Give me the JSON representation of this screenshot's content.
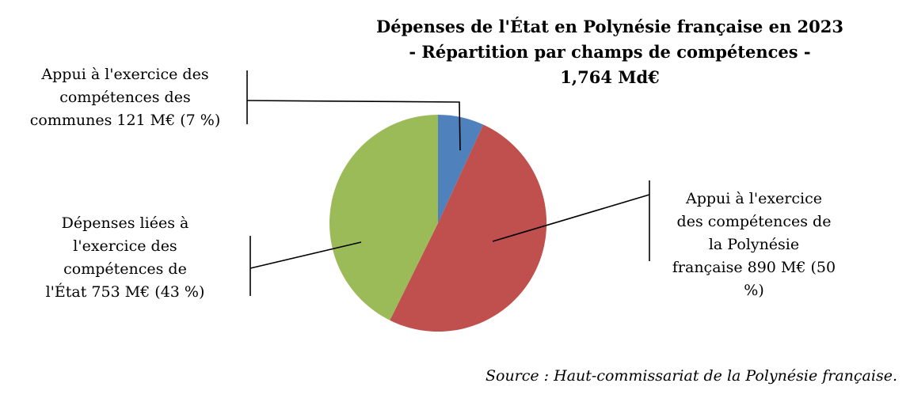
{
  "chart_data": {
    "type": "pie",
    "title_lines": [
      "Dépenses de l'État en Polynésie française en 2023",
      "- Répartition par champs de compétences -",
      "1,764 Md€"
    ],
    "slices": [
      {
        "value": 121,
        "percent": 7,
        "color": "#4F81BD",
        "label_lines": [
          "Appui à l'exercice des",
          "compétences des",
          "communes 121 M€ (7 %)"
        ]
      },
      {
        "value": 890,
        "percent": 50,
        "color": "#C0504D",
        "label_lines": [
          "Appui à l'exercice",
          "des compétences de",
          "la Polynésie",
          "française 890 M€ (50",
          "%)"
        ]
      },
      {
        "value": 753,
        "percent": 43,
        "color": "#9BBB59",
        "label_lines": [
          "Dépenses liées à",
          "l'exercice des",
          "compétences de",
          "l'État 753 M€ (43 %)"
        ]
      }
    ]
  },
  "source": "Source : Haut-commissariat de la Polynésie française."
}
